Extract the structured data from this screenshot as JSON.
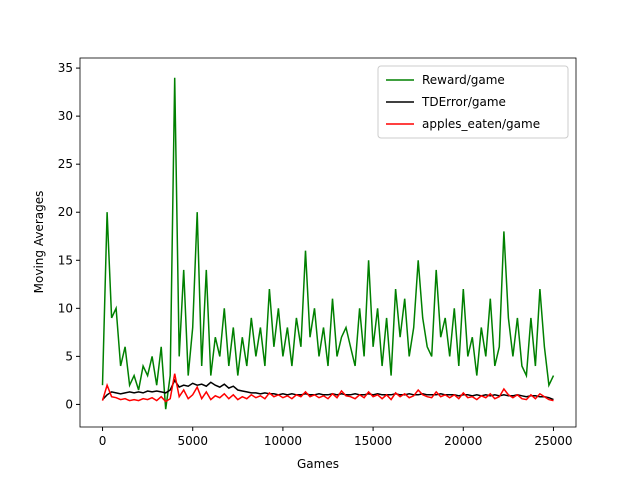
{
  "chart_data": {
    "type": "line",
    "xlabel": "Games",
    "ylabel": "Moving Averages",
    "x": [
      0,
      250,
      500,
      750,
      1000,
      1250,
      1500,
      1750,
      2000,
      2250,
      2500,
      2750,
      3000,
      3250,
      3500,
      3750,
      4000,
      4250,
      4500,
      4750,
      5000,
      5250,
      5500,
      5750,
      6000,
      6250,
      6500,
      6750,
      7000,
      7250,
      7500,
      7750,
      8000,
      8250,
      8500,
      8750,
      9000,
      9250,
      9500,
      9750,
      10000,
      10250,
      10500,
      10750,
      11000,
      11250,
      11500,
      11750,
      12000,
      12250,
      12500,
      12750,
      13000,
      13250,
      13500,
      13750,
      14000,
      14250,
      14500,
      14750,
      15000,
      15250,
      15500,
      15750,
      16000,
      16250,
      16500,
      16750,
      17000,
      17250,
      17500,
      17750,
      18000,
      18250,
      18500,
      18750,
      19000,
      19250,
      19500,
      19750,
      20000,
      20250,
      20500,
      20750,
      21000,
      21250,
      21500,
      21750,
      22000,
      22250,
      22500,
      22750,
      23000,
      23250,
      23500,
      23750,
      24000,
      24250,
      24500,
      24750,
      25000
    ],
    "series": [
      {
        "name": "Reward/game",
        "color": "#008000",
        "values": [
          2,
          20,
          9,
          10,
          4,
          6,
          2,
          3,
          1.5,
          4,
          3,
          5,
          2,
          6,
          -0.5,
          3,
          34,
          5,
          14,
          3,
          8,
          20,
          4,
          14,
          3,
          7,
          5,
          10,
          4,
          8,
          3,
          7,
          4,
          9,
          5,
          8,
          4,
          12,
          6,
          10,
          5,
          8,
          4,
          9,
          6,
          16,
          7,
          10,
          5,
          8,
          4,
          11,
          5,
          7,
          8,
          6,
          4,
          10,
          5,
          15,
          6,
          10,
          4,
          9,
          3,
          12,
          7,
          11,
          5,
          8,
          15,
          9,
          6,
          5,
          14,
          7,
          9,
          5,
          10,
          4,
          12,
          5,
          7,
          3,
          8,
          5,
          11,
          4,
          6,
          18,
          9,
          5,
          9,
          4,
          3,
          9,
          4,
          12,
          6,
          2,
          3
        ]
      },
      {
        "name": "TDError/game",
        "color": "#000000",
        "values": [
          0.5,
          1.0,
          1.3,
          1.2,
          1.1,
          1.2,
          1.3,
          1.2,
          1.3,
          1.2,
          1.4,
          1.3,
          1.4,
          1.3,
          1.2,
          1.5,
          2.5,
          1.8,
          2.0,
          1.9,
          2.2,
          2.0,
          2.1,
          1.9,
          2.3,
          2.0,
          1.8,
          2.1,
          1.7,
          1.9,
          1.5,
          1.4,
          1.3,
          1.2,
          1.2,
          1.1,
          1.2,
          1.1,
          1.1,
          1.0,
          1.1,
          1.0,
          1.1,
          1.0,
          1.0,
          1.1,
          1.0,
          1.0,
          1.1,
          1.0,
          1.0,
          1.1,
          1.0,
          1.1,
          1.0,
          1.0,
          1.1,
          1.0,
          1.0,
          1.1,
          1.0,
          1.1,
          1.0,
          1.0,
          1.0,
          1.1,
          1.0,
          1.0,
          1.1,
          1.0,
          1.0,
          1.1,
          1.0,
          1.0,
          1.0,
          1.1,
          1.0,
          1.0,
          1.0,
          0.9,
          1.0,
          1.0,
          0.9,
          1.0,
          0.9,
          1.0,
          0.9,
          1.0,
          0.9,
          1.0,
          0.9,
          0.9,
          1.0,
          0.9,
          0.8,
          0.9,
          0.9,
          0.8,
          0.8,
          0.7,
          0.5
        ]
      },
      {
        "name": "apples_eaten/game",
        "color": "#ff0000",
        "values": [
          0.4,
          2.0,
          0.8,
          0.7,
          0.5,
          0.6,
          0.4,
          0.5,
          0.4,
          0.6,
          0.5,
          0.7,
          0.4,
          0.8,
          0.3,
          0.6,
          3.2,
          0.8,
          1.5,
          0.6,
          1.0,
          1.8,
          0.6,
          1.3,
          0.5,
          0.9,
          0.7,
          1.1,
          0.6,
          1.0,
          0.5,
          0.8,
          0.6,
          1.0,
          0.7,
          0.9,
          0.6,
          1.2,
          0.8,
          1.0,
          0.7,
          0.9,
          0.6,
          1.0,
          0.8,
          1.3,
          0.8,
          1.0,
          0.7,
          0.9,
          0.6,
          1.1,
          0.7,
          1.4,
          0.9,
          0.8,
          0.6,
          1.0,
          0.7,
          1.3,
          0.8,
          1.0,
          0.6,
          1.0,
          0.5,
          1.2,
          0.8,
          1.1,
          0.7,
          0.9,
          1.5,
          1.0,
          0.8,
          0.7,
          1.3,
          0.8,
          1.0,
          0.7,
          1.0,
          0.6,
          1.2,
          0.7,
          0.8,
          0.5,
          0.9,
          0.7,
          1.1,
          0.6,
          0.8,
          1.6,
          1.0,
          0.7,
          1.0,
          0.6,
          0.5,
          1.0,
          0.6,
          1.1,
          0.8,
          0.5,
          0.4
        ]
      }
    ],
    "xlim": [
      -1250,
      26250
    ],
    "ylim": [
      -2.35,
      36.05
    ],
    "xticks": [
      0,
      5000,
      10000,
      15000,
      20000,
      25000
    ],
    "yticks": [
      0,
      5,
      10,
      15,
      20,
      25,
      30,
      35
    ],
    "legend": "upper right"
  }
}
